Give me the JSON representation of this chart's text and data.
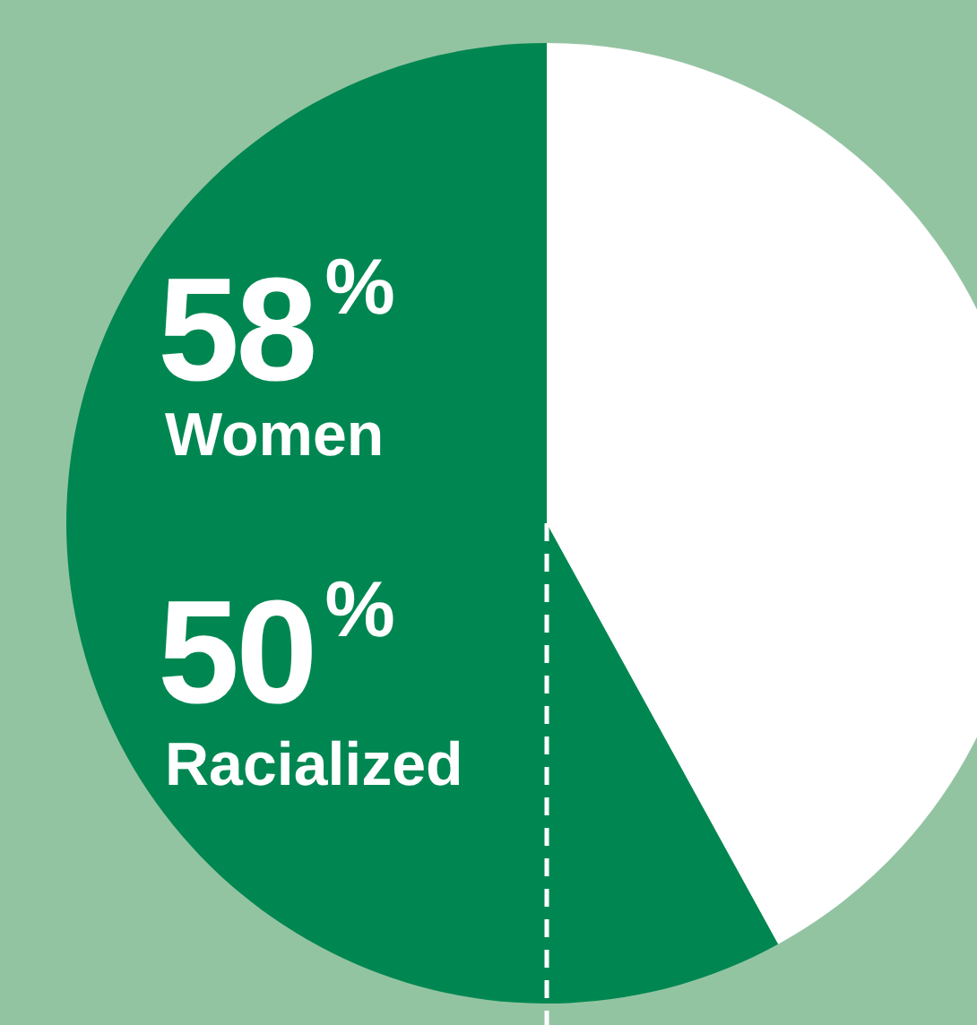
{
  "chart_data": {
    "type": "pie",
    "categories": [
      "Women",
      null
    ],
    "values": [
      58,
      42
    ],
    "colors": [
      "#008751",
      "#ffffff"
    ],
    "value_labels": [
      "58$^{%}$",
      null
    ],
    "annotations": [
      "50$^{%}$",
      "Racialized"
    ]
  }
}
